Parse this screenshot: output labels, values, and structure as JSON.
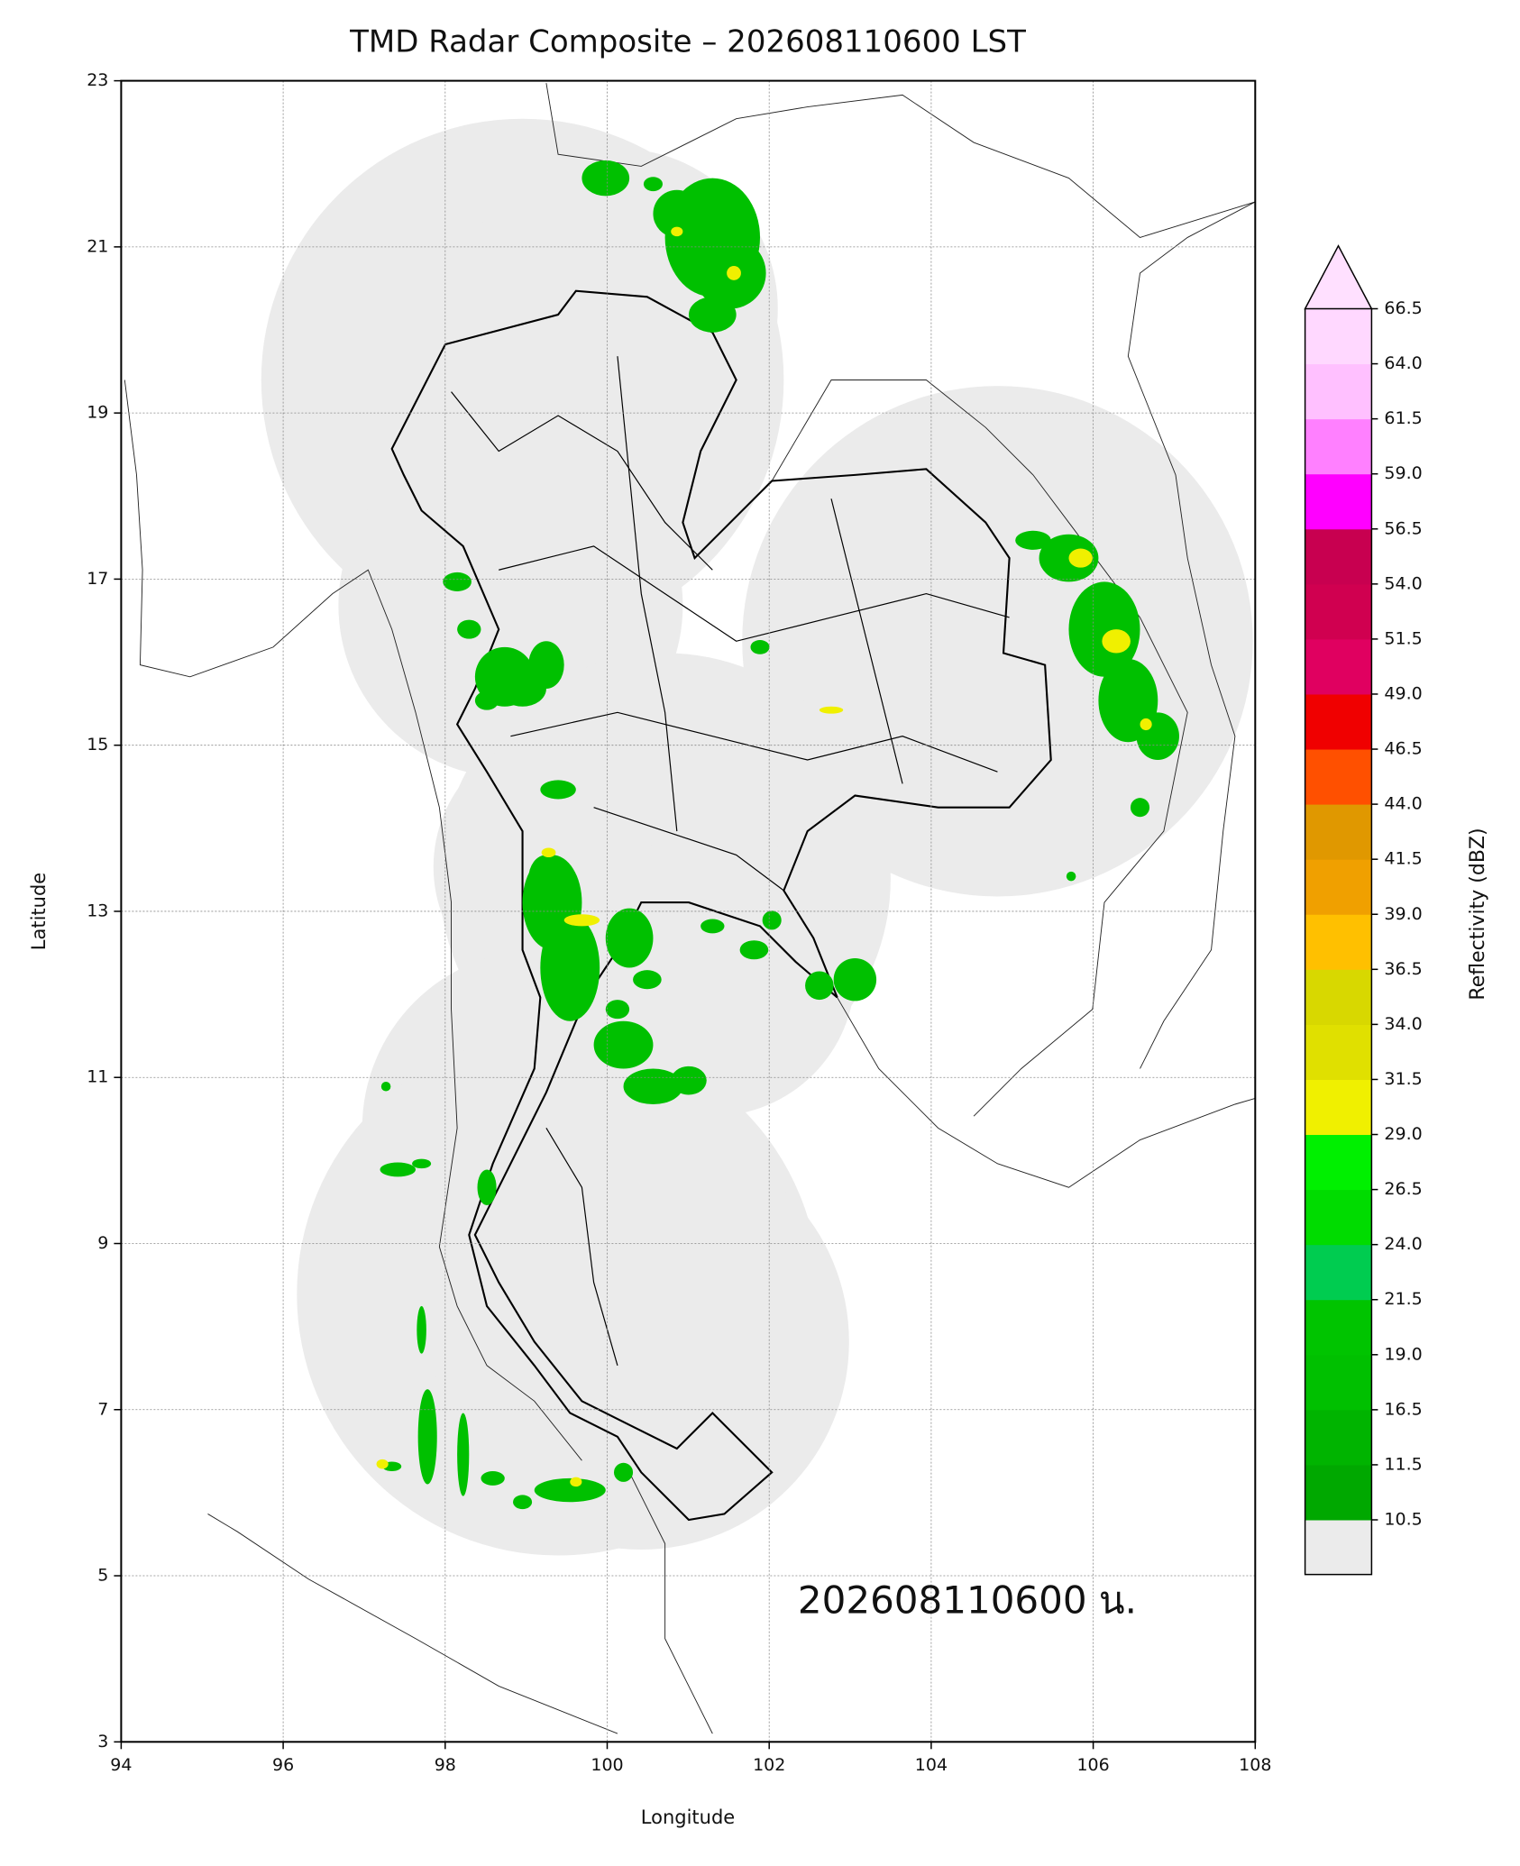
{
  "chart_data": {
    "type": "map",
    "title": "TMD Radar Composite – 202608110600 LST",
    "annotation": "202608110600 น.",
    "xlabel": "Longitude",
    "ylabel": "Latitude",
    "xlim": [
      94,
      108
    ],
    "ylim": [
      3,
      23
    ],
    "xticks": [
      94,
      96,
      98,
      100,
      102,
      104,
      106,
      108
    ],
    "yticks": [
      3,
      5,
      7,
      9,
      11,
      13,
      15,
      17,
      19,
      21,
      23
    ],
    "grid": true,
    "colorbar": {
      "label": "Reflectivity (dBZ)",
      "levels": [
        10.5,
        11.5,
        16.5,
        {
          "value": 19,
          "label": "19.0"
        },
        21.5,
        {
          "value": 24,
          "label": "24.0"
        },
        26.5,
        {
          "value": 29,
          "label": "29.0"
        },
        31.5,
        {
          "value": 34,
          "label": "34.0"
        },
        36.5,
        {
          "value": 39,
          "label": "39.0"
        },
        41.5,
        {
          "value": 44,
          "label": "44.0"
        },
        46.5,
        {
          "value": 49,
          "label": "49.0"
        },
        51.5,
        {
          "value": 54,
          "label": "54.0"
        },
        56.5,
        {
          "value": 59,
          "label": "59.0"
        },
        61.5,
        {
          "value": 64,
          "label": "64.0"
        },
        66.5
      ],
      "colors": [
        "#00a800",
        "#00b400",
        "#00c000",
        "#00c400",
        "#00cc50",
        "#00dc00",
        "#00f000",
        "#f0f000",
        "#e0e000",
        "#d8d800",
        "#ffc000",
        "#f0a000",
        "#e09800",
        "#ff5000",
        "#f00000",
        "#e00060",
        "#d00050",
        "#c80050",
        "#ff00ff",
        "#ff80ff",
        "#ffc0ff",
        "#ffd8ff"
      ],
      "over_color": "#ffe0ff",
      "under_color": "#ebebeb"
    }
  }
}
